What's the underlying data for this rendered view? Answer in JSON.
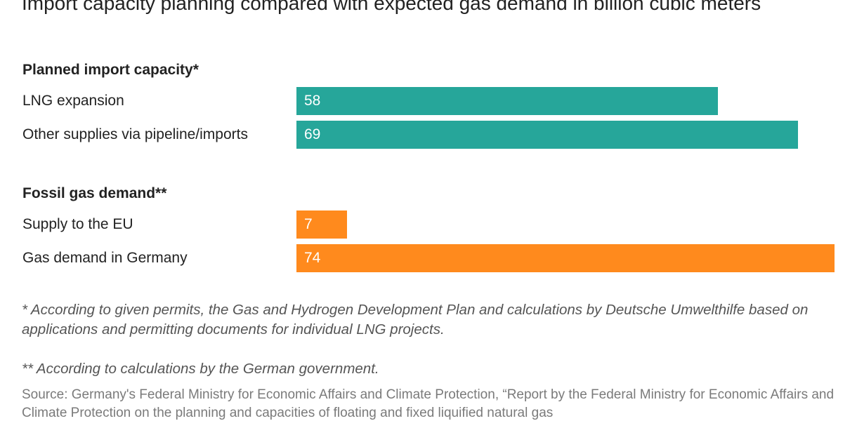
{
  "chart_data": {
    "type": "bar",
    "orientation": "horizontal",
    "title": "Import capacity planning compared with expected gas demand in billion cubic meters",
    "groups": [
      {
        "heading": "Planned import capacity*",
        "color": "#26a69a",
        "items": [
          {
            "label": "LNG expansion",
            "value": 58
          },
          {
            "label": "Other supplies via pipeline/imports",
            "value": 69
          }
        ]
      },
      {
        "heading": "Fossil gas demand**",
        "color": "#ff8a1d",
        "items": [
          {
            "label": "Supply to the EU",
            "value": 7
          },
          {
            "label": "Gas demand in Germany",
            "value": 74
          }
        ]
      }
    ],
    "xlim": [
      0,
      74
    ],
    "grid": false,
    "legend": "none"
  },
  "notes": [
    "* According to given permits, the Gas and Hydrogen Development Plan and calculations by Deutsche Umwelthilfe based on applications and permitting documents for individual LNG projects.",
    "** According to calculations by the German government."
  ],
  "source": "Source: Germany's Federal Ministry for Economic Affairs and Climate Protection, “Report by the Federal Ministry for Economic Affairs and Climate Protection on the planning and capacities of floating and fixed liquified natural gas"
}
